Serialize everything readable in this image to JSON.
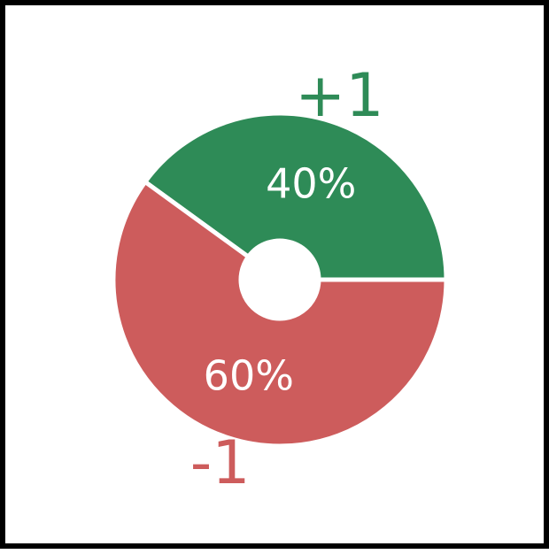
{
  "chart_data": {
    "type": "pie",
    "title": "",
    "slices": [
      {
        "label": "+1",
        "value": 40,
        "percent_label": "40%",
        "color": "#2e8b57"
      },
      {
        "label": "-1",
        "value": 60,
        "percent_label": "60%",
        "color": "#cd5c5c"
      }
    ],
    "donut": true,
    "start_angle_deg": 0,
    "direction": "counterclockwise"
  }
}
